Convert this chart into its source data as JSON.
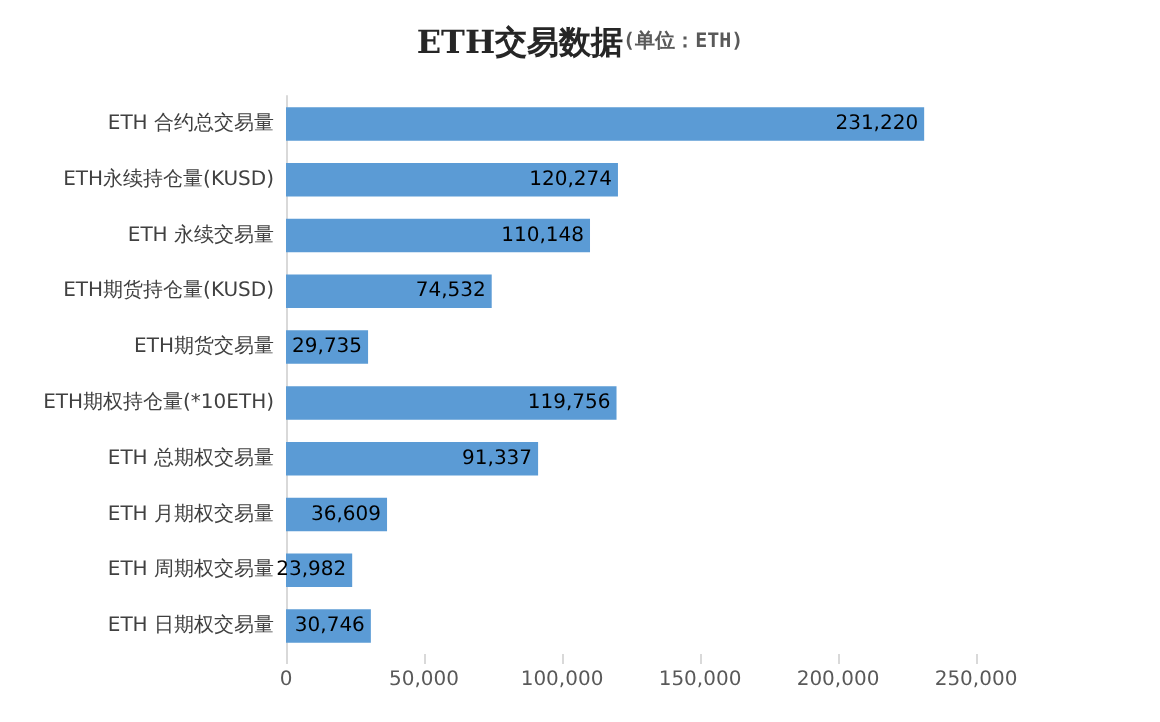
{
  "chart_data": {
    "type": "bar",
    "orientation": "horizontal",
    "title": "ETH交易数据",
    "subtitle": "(单位：ETH)",
    "categories": [
      "ETH 合约总交易量",
      "ETH永续持仓量(KUSD)",
      "ETH 永续交易量",
      "ETH期货持仓量(KUSD)",
      "ETH期货交易量",
      "ETH期权持仓量(*10ETH)",
      "ETH 总期权交易量",
      "ETH 月期权交易量",
      "ETH 周期权交易量",
      "ETH 日期权交易量"
    ],
    "values": [
      231220,
      120274,
      110148,
      74532,
      29735,
      119756,
      91337,
      36609,
      23982,
      30746
    ],
    "value_labels": [
      "231,220",
      "120,274",
      "110,148",
      "74,532",
      "29,735",
      "119,756",
      "91,337",
      "36,609",
      "23,982",
      "30,746"
    ],
    "color": "#5b9bd5",
    "xlim": [
      0,
      250000
    ],
    "xticks": [
      0,
      {
        "value": 50000,
        "label": "50,000"
      },
      {
        "value": 100000,
        "label": "100,000"
      },
      {
        "value": 150000,
        "label": "150,000"
      },
      {
        "value": 200000,
        "label": "200,000"
      },
      {
        "value": 250000,
        "label": "250,000"
      }
    ],
    "grid": false
  }
}
